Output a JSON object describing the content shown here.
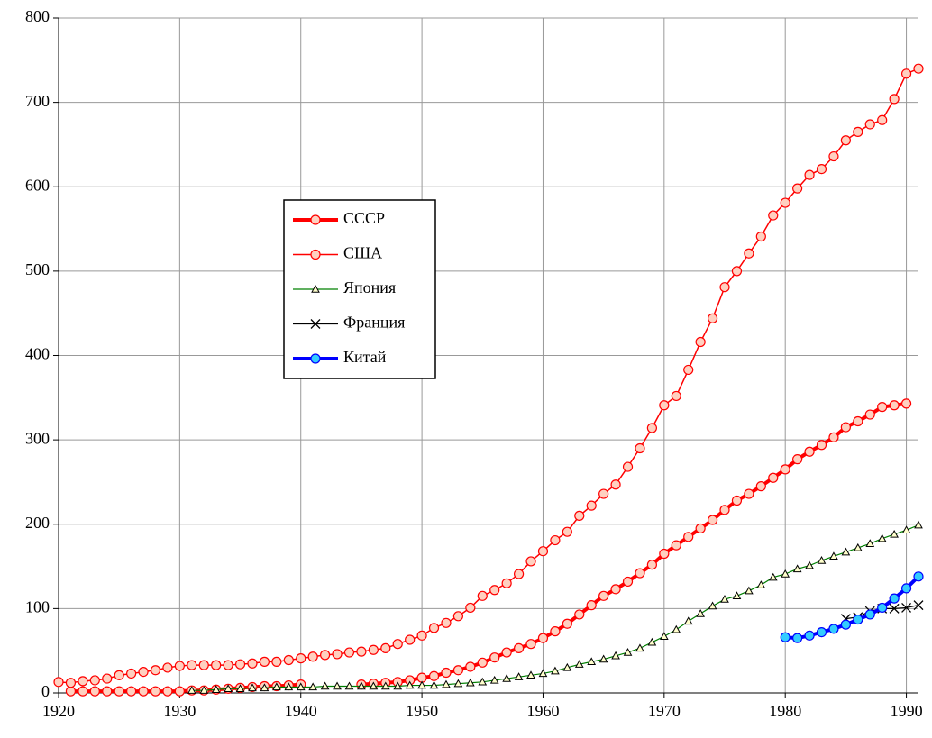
{
  "chart_data": {
    "type": "line",
    "xlim": [
      1920,
      1991
    ],
    "xticks": [
      1920,
      1930,
      1940,
      1950,
      1960,
      1970,
      1980,
      1990
    ],
    "ylim": [
      0,
      800
    ],
    "yticks": [
      0,
      100,
      200,
      300,
      400,
      500,
      600,
      700,
      800
    ],
    "grid": true,
    "legend": "center-left",
    "series": [
      {
        "name": "СССР",
        "color": "#ff0000",
        "marker": "circle",
        "x": [
          1921,
          1922,
          1923,
          1924,
          1925,
          1926,
          1927,
          1928,
          1929,
          1930,
          1931,
          1932,
          1933,
          1934,
          1935,
          1936,
          1937,
          1938,
          1939,
          1940,
          1941,
          1942,
          1943,
          1944,
          1945,
          1946,
          1947,
          1948,
          1949,
          1950,
          1951,
          1952,
          1953,
          1954,
          1955,
          1956,
          1957,
          1958,
          1959,
          1960,
          1961,
          1962,
          1963,
          1964,
          1965,
          1966,
          1967,
          1968,
          1969,
          1970,
          1971,
          1972,
          1973,
          1974,
          1975,
          1976,
          1977,
          1978,
          1979,
          1980,
          1981,
          1982,
          1983,
          1984,
          1985,
          1986,
          1987,
          1988,
          1989,
          1990
        ],
        "values": [
          2,
          2,
          2,
          2,
          2,
          2,
          2,
          2,
          2,
          2,
          3,
          3,
          4,
          5,
          6,
          7,
          8,
          8,
          9,
          10,
          null,
          null,
          null,
          null,
          10,
          11,
          12,
          13,
          15,
          18,
          20,
          24,
          27,
          31,
          36,
          42,
          48,
          53,
          58,
          65,
          73,
          82,
          93,
          104,
          115,
          123,
          132,
          142,
          152,
          165,
          175,
          185,
          195,
          205,
          217,
          228,
          236,
          245,
          255,
          265,
          277,
          286,
          294,
          303,
          315,
          322,
          330,
          339,
          341,
          343
        ]
      },
      {
        "name": "США",
        "color": "#ff0000",
        "marker": "circle",
        "x": [
          1920,
          1921,
          1922,
          1923,
          1924,
          1925,
          1926,
          1927,
          1928,
          1929,
          1930,
          1931,
          1932,
          1933,
          1934,
          1935,
          1936,
          1937,
          1938,
          1939,
          1940,
          1941,
          1942,
          1943,
          1944,
          1945,
          1946,
          1947,
          1948,
          1949,
          1950,
          1951,
          1952,
          1953,
          1954,
          1955,
          1956,
          1957,
          1958,
          1959,
          1960,
          1961,
          1962,
          1963,
          1964,
          1965,
          1966,
          1967,
          1968,
          1969,
          1970,
          1971,
          1972,
          1973,
          1974,
          1975,
          1976,
          1977,
          1978,
          1979,
          1980,
          1981,
          1982,
          1983,
          1984,
          1985,
          1986,
          1987,
          1988,
          1989,
          1990,
          1991
        ],
        "values": [
          13,
          12,
          14,
          15,
          17,
          21,
          23,
          25,
          27,
          30,
          32,
          33,
          33,
          33,
          33,
          34,
          35,
          37,
          37,
          39,
          41,
          43,
          45,
          46,
          48,
          49,
          51,
          53,
          58,
          63,
          68,
          77,
          83,
          91,
          101,
          115,
          122,
          130,
          141,
          156,
          168,
          181,
          191,
          210,
          222,
          236,
          247,
          268,
          290,
          314,
          341,
          352,
          383,
          416,
          444,
          481,
          500,
          521,
          541,
          566,
          581,
          598,
          614,
          621,
          636,
          655,
          665,
          674,
          679,
          704,
          734,
          740
        ]
      },
      {
        "name": "Япония",
        "color": "#008000",
        "marker": "triangle",
        "x": [
          1931,
          1932,
          1933,
          1934,
          1935,
          1936,
          1937,
          1938,
          1939,
          1940,
          1941,
          1942,
          1943,
          1944,
          1945,
          1946,
          1947,
          1948,
          1949,
          1950,
          1951,
          1952,
          1953,
          1954,
          1955,
          1956,
          1957,
          1958,
          1959,
          1960,
          1961,
          1962,
          1963,
          1964,
          1965,
          1966,
          1967,
          1968,
          1969,
          1970,
          1971,
          1972,
          1973,
          1974,
          1975,
          1976,
          1977,
          1978,
          1979,
          1980,
          1981,
          1982,
          1983,
          1984,
          1985,
          1986,
          1987,
          1988,
          1989,
          1990,
          1991
        ],
        "values": [
          3,
          3,
          4,
          5,
          5,
          6,
          6,
          7,
          7,
          7,
          7,
          8,
          8,
          8,
          8,
          8,
          8,
          8,
          9,
          9,
          9,
          10,
          11,
          12,
          13,
          15,
          17,
          19,
          21,
          23,
          26,
          30,
          34,
          37,
          40,
          44,
          48,
          53,
          60,
          67,
          75,
          85,
          94,
          103,
          111,
          115,
          121,
          128,
          137,
          141,
          147,
          151,
          157,
          162,
          167,
          172,
          177,
          183,
          188,
          193,
          199
        ]
      },
      {
        "name": "Франция",
        "color": "#000000",
        "marker": "x",
        "x": [
          1985,
          1986,
          1987,
          1988,
          1989,
          1990,
          1991
        ],
        "values": [
          88,
          90,
          97,
          100,
          100,
          101,
          104
        ]
      },
      {
        "name": "Китай",
        "color": "#0000ff",
        "marker": "circle",
        "x": [
          1980,
          1981,
          1982,
          1983,
          1984,
          1985,
          1986,
          1987,
          1988,
          1989,
          1990,
          1991
        ],
        "values": [
          66,
          65,
          68,
          72,
          76,
          81,
          87,
          93,
          101,
          112,
          124,
          138
        ]
      }
    ]
  }
}
